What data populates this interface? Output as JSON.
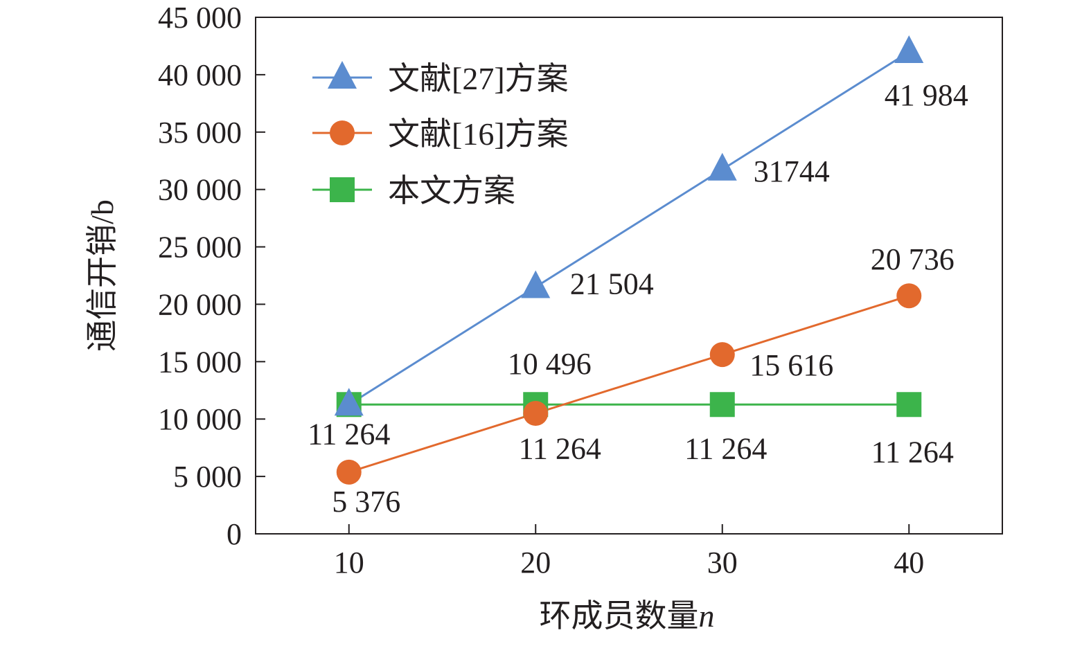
{
  "chart_data": {
    "type": "line",
    "x": [
      10,
      20,
      30,
      40
    ],
    "series": [
      {
        "name": "文献[27]方案",
        "values": [
          11264,
          21504,
          31744,
          41984
        ],
        "color": "#5b8ccf",
        "marker": "triangle",
        "labels": [
          "",
          "21 504",
          "31744",
          "41 984"
        ]
      },
      {
        "name": "文献[16]方案",
        "values": [
          5376,
          10496,
          15616,
          20736
        ],
        "color": "#e2692d",
        "marker": "circle",
        "labels": [
          "5 376",
          "10 496",
          "15 616",
          "20 736"
        ]
      },
      {
        "name": "本文方案",
        "values": [
          11264,
          11264,
          11264,
          11264
        ],
        "color": "#3cb44b",
        "marker": "square",
        "labels": [
          "11 264",
          "11 264",
          "11 264",
          "11 264"
        ]
      }
    ],
    "xlabel": "环成员数量",
    "xlabel_var": "n",
    "ylabel": "通信开销/b",
    "xlim": [
      5,
      45
    ],
    "ylim": [
      0,
      45000
    ],
    "xticks": [
      10,
      20,
      30,
      40
    ],
    "yticks": [
      0,
      5000,
      10000,
      15000,
      20000,
      25000,
      30000,
      35000,
      40000,
      45000
    ],
    "ytick_labels": [
      "0",
      "5 000",
      "10 000",
      "15 000",
      "20 000",
      "25 000",
      "30 000",
      "35 000",
      "40 000",
      "45 000"
    ],
    "grid": false,
    "legend_position": "top-left"
  }
}
